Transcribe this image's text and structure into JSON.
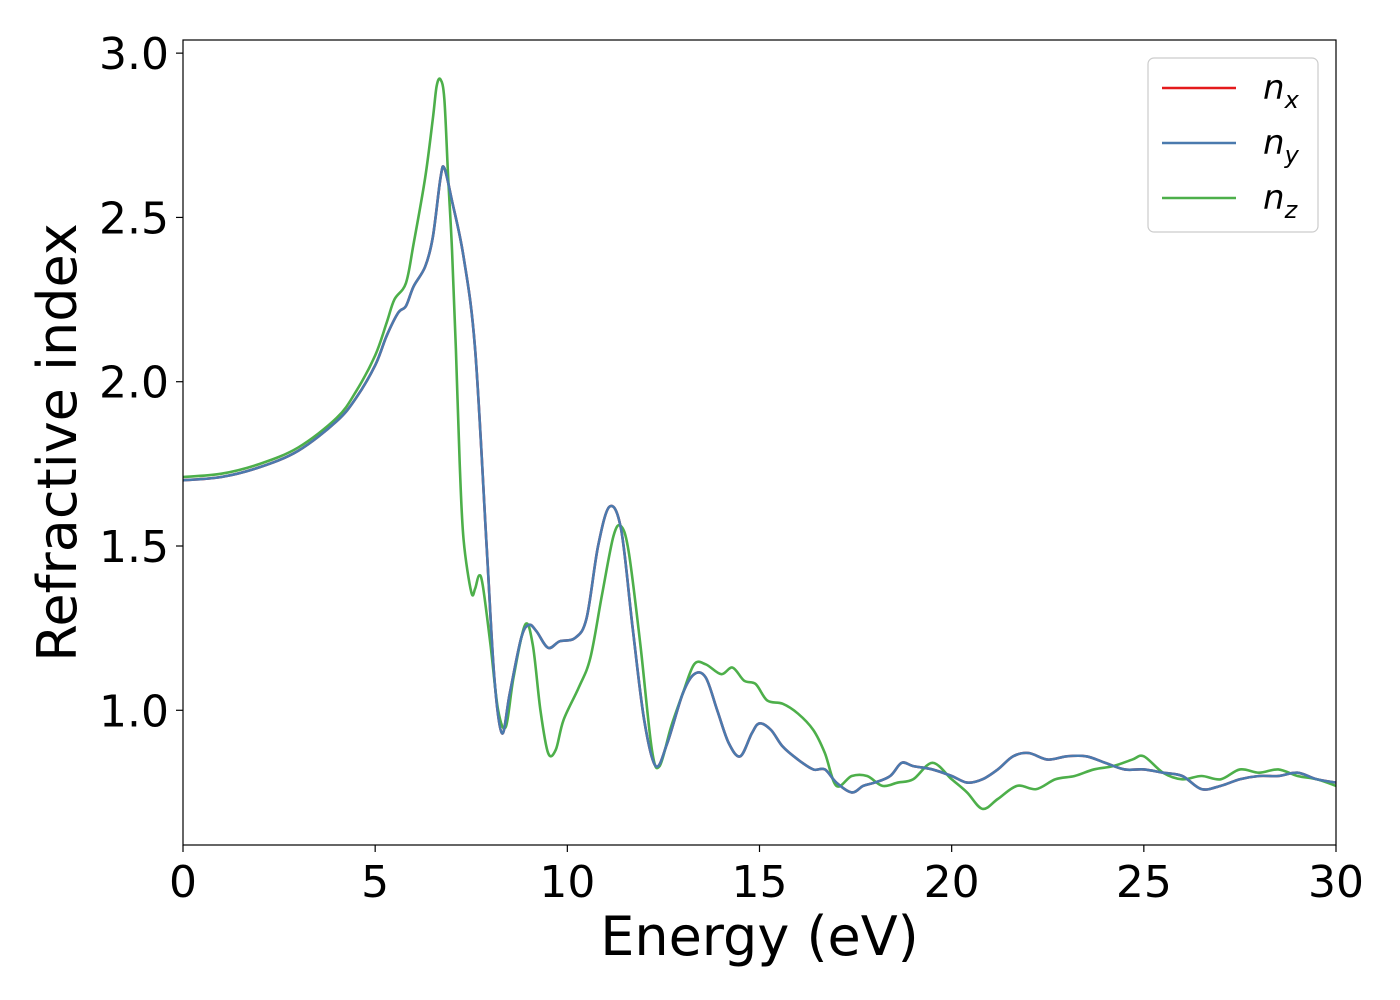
{
  "chart_data": {
    "type": "line",
    "xlabel": "Energy (eV)",
    "ylabel": "Refractive index",
    "xlim": [
      0,
      30
    ],
    "ylim": [
      0.59,
      3.04
    ],
    "grid": false,
    "legend_position": "top-right",
    "xticks": [
      "0",
      "5",
      "10",
      "15",
      "20",
      "25",
      "30"
    ],
    "yticks": [
      "1.0",
      "1.5",
      "2.0",
      "2.5",
      "3.0"
    ],
    "series": [
      {
        "name": "n_x",
        "label_main": "n",
        "label_sub": "x",
        "color": "#e41a1c",
        "points": [
          [
            0,
            1.7
          ],
          [
            1,
            1.71
          ],
          [
            2,
            1.74
          ],
          [
            3,
            1.79
          ],
          [
            4,
            1.88
          ],
          [
            4.5,
            1.95
          ],
          [
            5,
            2.05
          ],
          [
            5.3,
            2.14
          ],
          [
            5.6,
            2.21
          ],
          [
            5.8,
            2.23
          ],
          [
            6.0,
            2.29
          ],
          [
            6.3,
            2.35
          ],
          [
            6.5,
            2.44
          ],
          [
            6.7,
            2.62
          ],
          [
            6.8,
            2.65
          ],
          [
            7.0,
            2.55
          ],
          [
            7.3,
            2.38
          ],
          [
            7.6,
            2.1
          ],
          [
            7.9,
            1.5
          ],
          [
            8.1,
            1.1
          ],
          [
            8.3,
            0.93
          ],
          [
            8.5,
            1.05
          ],
          [
            8.8,
            1.22
          ],
          [
            9.0,
            1.26
          ],
          [
            9.2,
            1.24
          ],
          [
            9.5,
            1.19
          ],
          [
            9.8,
            1.21
          ],
          [
            10.2,
            1.22
          ],
          [
            10.5,
            1.28
          ],
          [
            10.8,
            1.5
          ],
          [
            11.1,
            1.62
          ],
          [
            11.4,
            1.55
          ],
          [
            11.7,
            1.25
          ],
          [
            12.0,
            0.97
          ],
          [
            12.3,
            0.83
          ],
          [
            12.6,
            0.9
          ],
          [
            13.0,
            1.05
          ],
          [
            13.3,
            1.11
          ],
          [
            13.6,
            1.1
          ],
          [
            13.9,
            1.0
          ],
          [
            14.2,
            0.9
          ],
          [
            14.5,
            0.86
          ],
          [
            14.8,
            0.93
          ],
          [
            15.0,
            0.96
          ],
          [
            15.3,
            0.94
          ],
          [
            15.6,
            0.89
          ],
          [
            16.0,
            0.85
          ],
          [
            16.4,
            0.82
          ],
          [
            16.7,
            0.82
          ],
          [
            17.0,
            0.78
          ],
          [
            17.4,
            0.75
          ],
          [
            17.7,
            0.77
          ],
          [
            18.0,
            0.78
          ],
          [
            18.4,
            0.8
          ],
          [
            18.7,
            0.84
          ],
          [
            19.0,
            0.83
          ],
          [
            19.5,
            0.82
          ],
          [
            20.0,
            0.8
          ],
          [
            20.4,
            0.78
          ],
          [
            20.8,
            0.79
          ],
          [
            21.2,
            0.82
          ],
          [
            21.6,
            0.86
          ],
          [
            22.0,
            0.87
          ],
          [
            22.5,
            0.85
          ],
          [
            23.0,
            0.86
          ],
          [
            23.5,
            0.86
          ],
          [
            24.0,
            0.84
          ],
          [
            24.5,
            0.82
          ],
          [
            25.0,
            0.82
          ],
          [
            25.5,
            0.81
          ],
          [
            26.0,
            0.8
          ],
          [
            26.5,
            0.76
          ],
          [
            27.0,
            0.77
          ],
          [
            27.5,
            0.79
          ],
          [
            28.0,
            0.8
          ],
          [
            28.5,
            0.8
          ],
          [
            29.0,
            0.81
          ],
          [
            29.5,
            0.79
          ],
          [
            30.0,
            0.78
          ]
        ]
      },
      {
        "name": "n_y",
        "label_main": "n",
        "label_sub": "y",
        "color": "#4a7aae",
        "points": [
          [
            0,
            1.7
          ],
          [
            1,
            1.71
          ],
          [
            2,
            1.74
          ],
          [
            3,
            1.79
          ],
          [
            4,
            1.88
          ],
          [
            4.5,
            1.95
          ],
          [
            5,
            2.05
          ],
          [
            5.3,
            2.14
          ],
          [
            5.6,
            2.21
          ],
          [
            5.8,
            2.23
          ],
          [
            6.0,
            2.29
          ],
          [
            6.3,
            2.35
          ],
          [
            6.5,
            2.44
          ],
          [
            6.7,
            2.62
          ],
          [
            6.8,
            2.65
          ],
          [
            7.0,
            2.55
          ],
          [
            7.3,
            2.38
          ],
          [
            7.6,
            2.1
          ],
          [
            7.9,
            1.5
          ],
          [
            8.1,
            1.1
          ],
          [
            8.3,
            0.93
          ],
          [
            8.5,
            1.05
          ],
          [
            8.8,
            1.22
          ],
          [
            9.0,
            1.26
          ],
          [
            9.2,
            1.24
          ],
          [
            9.5,
            1.19
          ],
          [
            9.8,
            1.21
          ],
          [
            10.2,
            1.22
          ],
          [
            10.5,
            1.28
          ],
          [
            10.8,
            1.5
          ],
          [
            11.1,
            1.62
          ],
          [
            11.4,
            1.55
          ],
          [
            11.7,
            1.25
          ],
          [
            12.0,
            0.97
          ],
          [
            12.3,
            0.83
          ],
          [
            12.6,
            0.9
          ],
          [
            13.0,
            1.05
          ],
          [
            13.3,
            1.11
          ],
          [
            13.6,
            1.1
          ],
          [
            13.9,
            1.0
          ],
          [
            14.2,
            0.9
          ],
          [
            14.5,
            0.86
          ],
          [
            14.8,
            0.93
          ],
          [
            15.0,
            0.96
          ],
          [
            15.3,
            0.94
          ],
          [
            15.6,
            0.89
          ],
          [
            16.0,
            0.85
          ],
          [
            16.4,
            0.82
          ],
          [
            16.7,
            0.82
          ],
          [
            17.0,
            0.78
          ],
          [
            17.4,
            0.75
          ],
          [
            17.7,
            0.77
          ],
          [
            18.0,
            0.78
          ],
          [
            18.4,
            0.8
          ],
          [
            18.7,
            0.84
          ],
          [
            19.0,
            0.83
          ],
          [
            19.5,
            0.82
          ],
          [
            20.0,
            0.8
          ],
          [
            20.4,
            0.78
          ],
          [
            20.8,
            0.79
          ],
          [
            21.2,
            0.82
          ],
          [
            21.6,
            0.86
          ],
          [
            22.0,
            0.87
          ],
          [
            22.5,
            0.85
          ],
          [
            23.0,
            0.86
          ],
          [
            23.5,
            0.86
          ],
          [
            24.0,
            0.84
          ],
          [
            24.5,
            0.82
          ],
          [
            25.0,
            0.82
          ],
          [
            25.5,
            0.81
          ],
          [
            26.0,
            0.8
          ],
          [
            26.5,
            0.76
          ],
          [
            27.0,
            0.77
          ],
          [
            27.5,
            0.79
          ],
          [
            28.0,
            0.8
          ],
          [
            28.5,
            0.8
          ],
          [
            29.0,
            0.81
          ],
          [
            29.5,
            0.79
          ],
          [
            30.0,
            0.78
          ]
        ]
      },
      {
        "name": "n_z",
        "label_main": "n",
        "label_sub": "z",
        "color": "#4daf4a",
        "points": [
          [
            0,
            1.71
          ],
          [
            1,
            1.72
          ],
          [
            2,
            1.75
          ],
          [
            3,
            1.8
          ],
          [
            4,
            1.89
          ],
          [
            4.5,
            1.97
          ],
          [
            5,
            2.08
          ],
          [
            5.3,
            2.18
          ],
          [
            5.5,
            2.25
          ],
          [
            5.8,
            2.3
          ],
          [
            6.0,
            2.42
          ],
          [
            6.3,
            2.62
          ],
          [
            6.5,
            2.8
          ],
          [
            6.6,
            2.9
          ],
          [
            6.7,
            2.92
          ],
          [
            6.8,
            2.86
          ],
          [
            6.9,
            2.62
          ],
          [
            7.0,
            2.4
          ],
          [
            7.1,
            2.1
          ],
          [
            7.2,
            1.75
          ],
          [
            7.3,
            1.52
          ],
          [
            7.5,
            1.36
          ],
          [
            7.6,
            1.37
          ],
          [
            7.7,
            1.41
          ],
          [
            7.8,
            1.38
          ],
          [
            8.0,
            1.2
          ],
          [
            8.2,
            1.0
          ],
          [
            8.4,
            0.95
          ],
          [
            8.6,
            1.1
          ],
          [
            8.9,
            1.26
          ],
          [
            9.1,
            1.2
          ],
          [
            9.3,
            1.0
          ],
          [
            9.5,
            0.87
          ],
          [
            9.7,
            0.88
          ],
          [
            9.9,
            0.97
          ],
          [
            10.3,
            1.07
          ],
          [
            10.6,
            1.16
          ],
          [
            10.9,
            1.35
          ],
          [
            11.2,
            1.53
          ],
          [
            11.4,
            1.56
          ],
          [
            11.6,
            1.48
          ],
          [
            11.9,
            1.2
          ],
          [
            12.2,
            0.88
          ],
          [
            12.4,
            0.83
          ],
          [
            12.7,
            0.95
          ],
          [
            13.0,
            1.05
          ],
          [
            13.3,
            1.14
          ],
          [
            13.6,
            1.14
          ],
          [
            14.0,
            1.11
          ],
          [
            14.3,
            1.13
          ],
          [
            14.6,
            1.09
          ],
          [
            14.9,
            1.08
          ],
          [
            15.2,
            1.03
          ],
          [
            15.6,
            1.02
          ],
          [
            16.0,
            0.99
          ],
          [
            16.4,
            0.94
          ],
          [
            16.7,
            0.87
          ],
          [
            17.0,
            0.77
          ],
          [
            17.4,
            0.8
          ],
          [
            17.8,
            0.8
          ],
          [
            18.2,
            0.77
          ],
          [
            18.6,
            0.78
          ],
          [
            19.0,
            0.79
          ],
          [
            19.5,
            0.84
          ],
          [
            20.0,
            0.79
          ],
          [
            20.4,
            0.75
          ],
          [
            20.8,
            0.7
          ],
          [
            21.2,
            0.73
          ],
          [
            21.7,
            0.77
          ],
          [
            22.2,
            0.76
          ],
          [
            22.7,
            0.79
          ],
          [
            23.2,
            0.8
          ],
          [
            23.7,
            0.82
          ],
          [
            24.2,
            0.83
          ],
          [
            24.7,
            0.85
          ],
          [
            25.0,
            0.86
          ],
          [
            25.5,
            0.81
          ],
          [
            26.0,
            0.79
          ],
          [
            26.5,
            0.8
          ],
          [
            27.0,
            0.79
          ],
          [
            27.5,
            0.82
          ],
          [
            28.0,
            0.81
          ],
          [
            28.5,
            0.82
          ],
          [
            29.0,
            0.8
          ],
          [
            29.5,
            0.79
          ],
          [
            30.0,
            0.77
          ]
        ]
      }
    ]
  }
}
